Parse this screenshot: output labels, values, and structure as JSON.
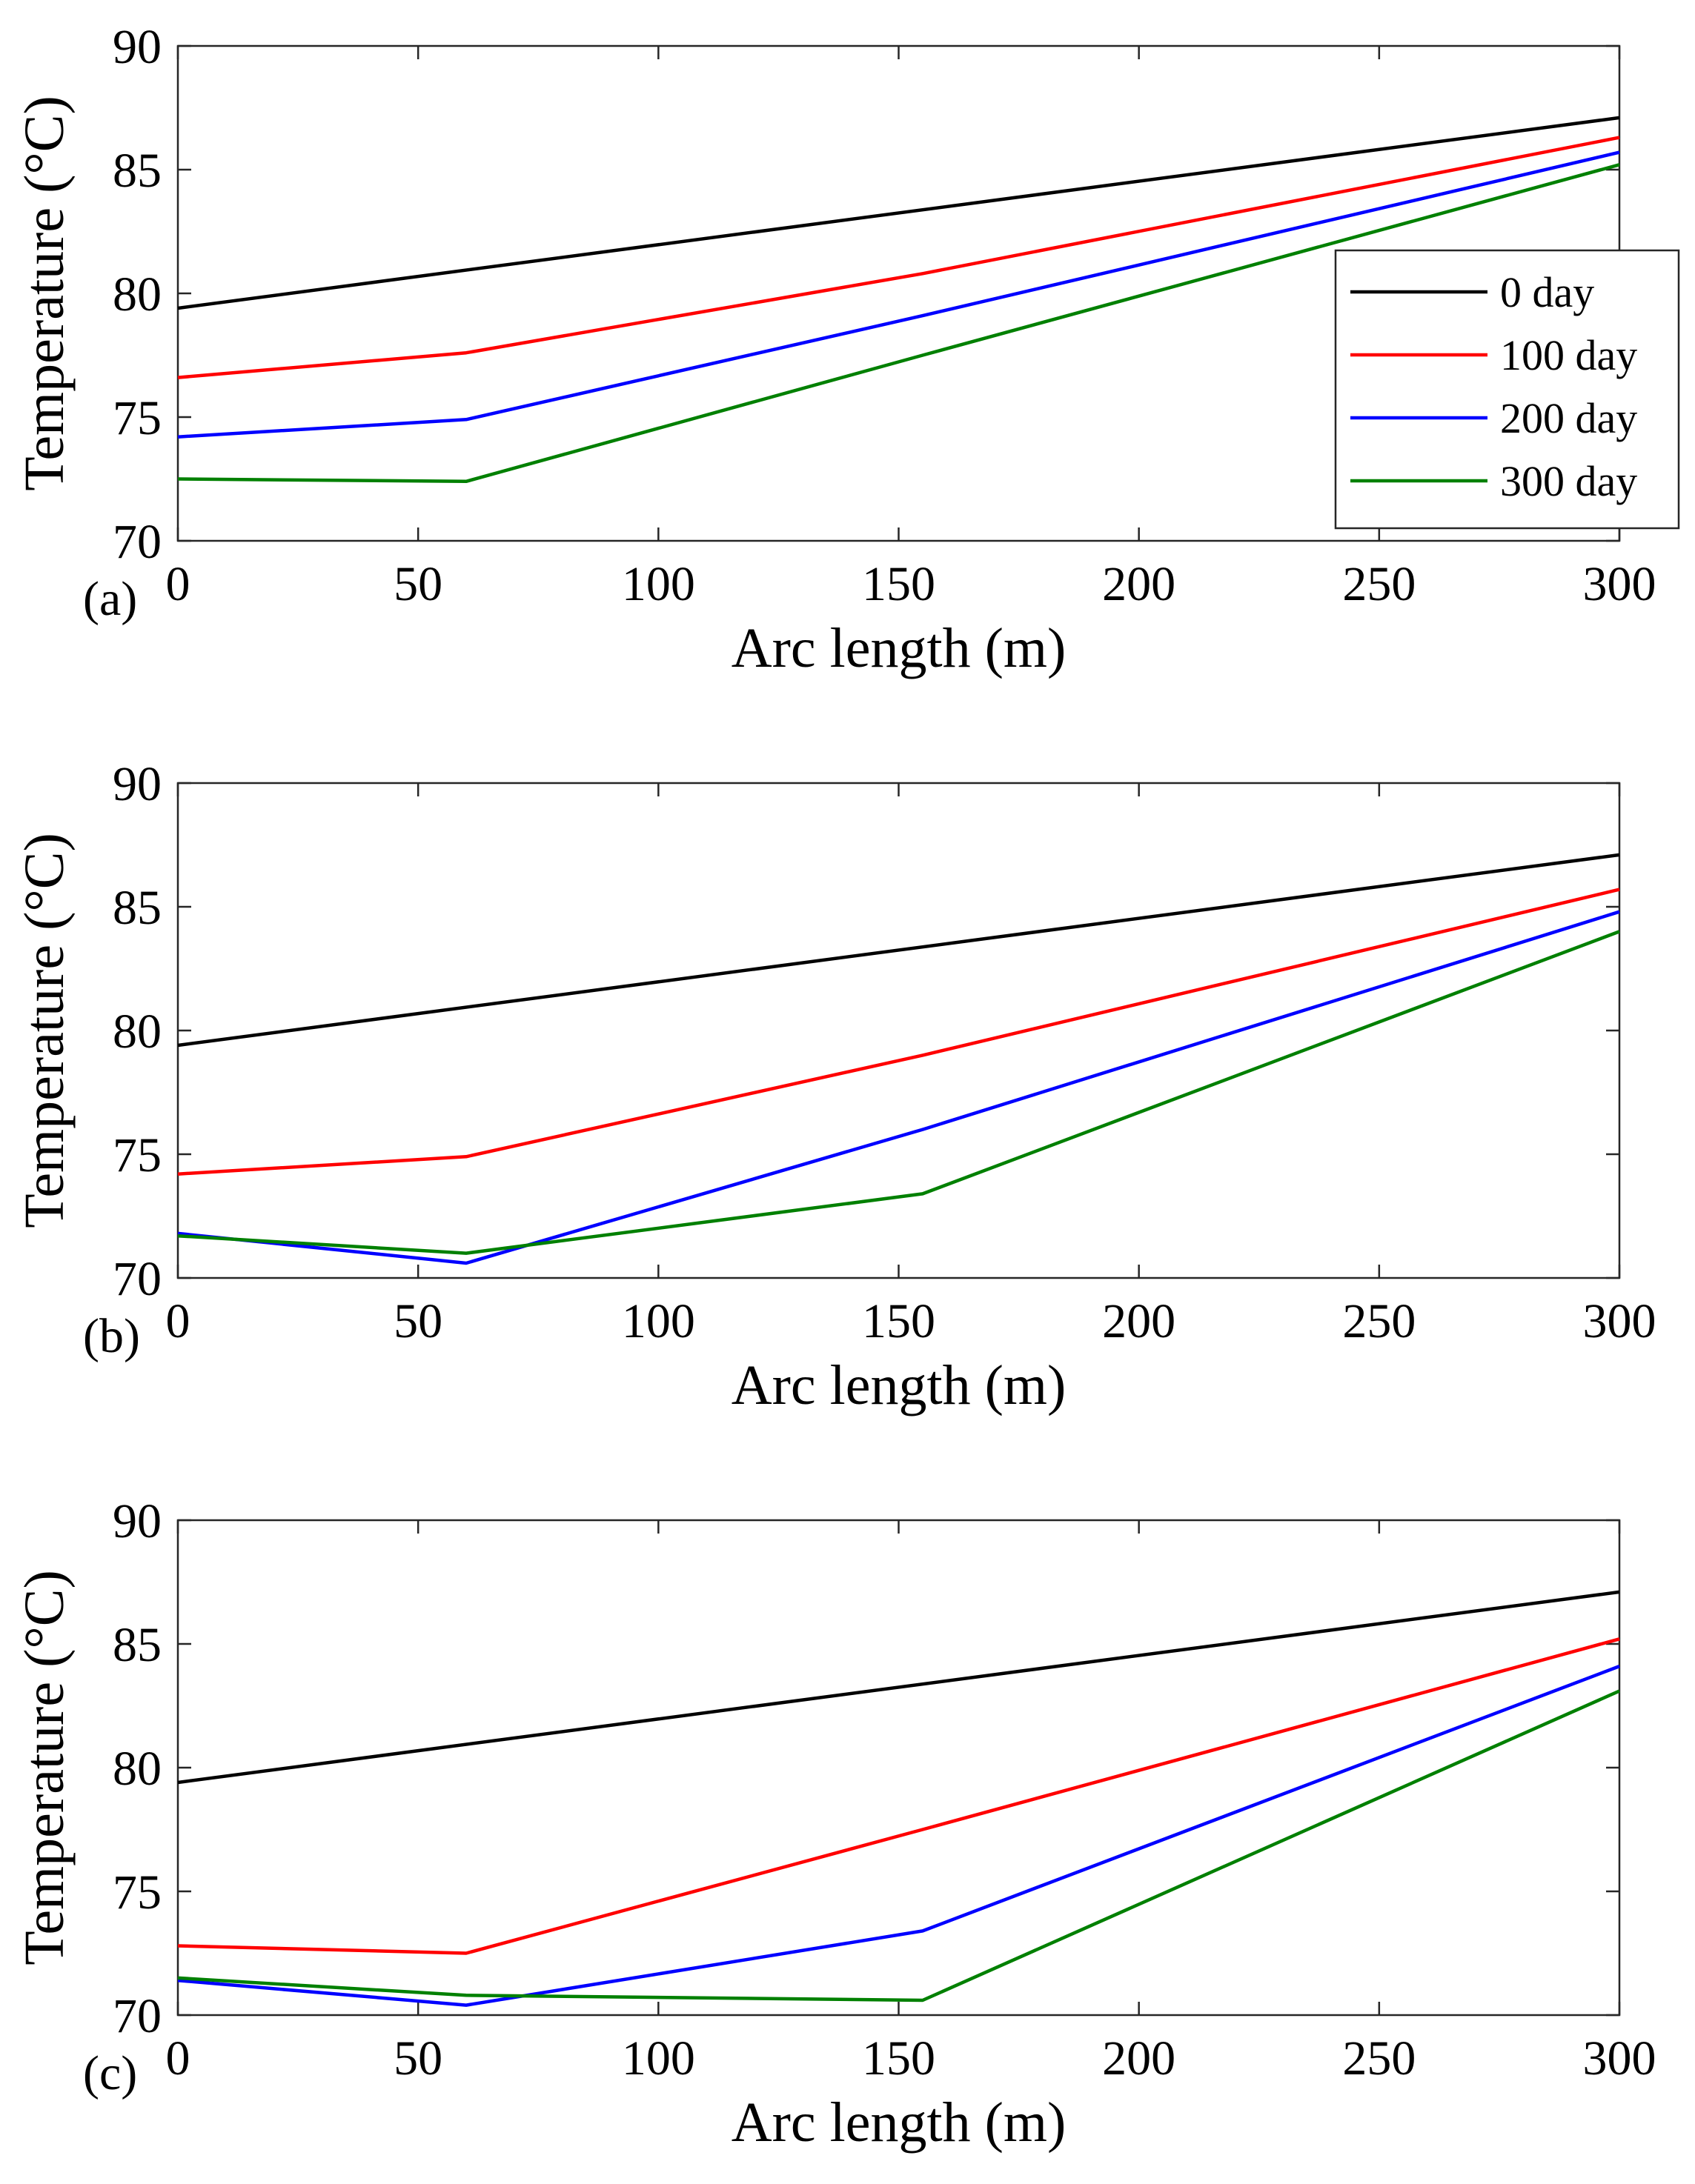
{
  "chart_data": [
    {
      "type": "line",
      "panel_label": "(a)",
      "xlabel": "Arc length (m)",
      "ylabel": "Temperature (°C)",
      "xlim": [
        0,
        300
      ],
      "ylim": [
        70,
        90
      ],
      "xticks": [
        0,
        50,
        100,
        150,
        200,
        250,
        300
      ],
      "yticks": [
        70,
        75,
        80,
        85,
        90
      ],
      "grid": false,
      "legend": "right",
      "series": [
        {
          "name": "0 day",
          "color": "#000000",
          "x": [
            0,
            300
          ],
          "y": [
            79.4,
            87.1
          ]
        },
        {
          "name": "100 day",
          "color": "#ff0000",
          "x": [
            0,
            60,
            155,
            300
          ],
          "y": [
            76.6,
            77.6,
            80.8,
            86.3
          ]
        },
        {
          "name": "200 day",
          "color": "#0000ff",
          "x": [
            0,
            60,
            155,
            300
          ],
          "y": [
            74.2,
            74.9,
            79.1,
            85.7
          ]
        },
        {
          "name": "300 day",
          "color": "#008000",
          "x": [
            0,
            60,
            155,
            300
          ],
          "y": [
            72.5,
            72.4,
            77.5,
            85.2
          ]
        }
      ]
    },
    {
      "type": "line",
      "panel_label": "(b)",
      "xlabel": "Arc length (m)",
      "ylabel": "Temperature (°C)",
      "xlim": [
        0,
        300
      ],
      "ylim": [
        70,
        90
      ],
      "xticks": [
        0,
        50,
        100,
        150,
        200,
        250,
        300
      ],
      "yticks": [
        70,
        75,
        80,
        85,
        90
      ],
      "grid": false,
      "series": [
        {
          "name": "",
          "color": "#000000",
          "x": [
            0,
            300
          ],
          "y": [
            79.4,
            87.1
          ]
        },
        {
          "name": "",
          "color": "#ff0000",
          "x": [
            0,
            60,
            155,
            300
          ],
          "y": [
            74.2,
            74.9,
            79.0,
            85.7
          ]
        },
        {
          "name": "",
          "color": "#0000ff",
          "x": [
            0,
            60,
            155,
            300
          ],
          "y": [
            71.8,
            70.6,
            76.0,
            84.8
          ]
        },
        {
          "name": "",
          "color": "#008000",
          "x": [
            0,
            60,
            155,
            300
          ],
          "y": [
            71.7,
            71.0,
            73.4,
            84.0
          ]
        }
      ]
    },
    {
      "type": "line",
      "panel_label": "(c)",
      "xlabel": "Arc length (m)",
      "ylabel": "Temperature (°C)",
      "xlim": [
        0,
        300
      ],
      "ylim": [
        70,
        90
      ],
      "xticks": [
        0,
        50,
        100,
        150,
        200,
        250,
        300
      ],
      "yticks": [
        70,
        75,
        80,
        85,
        90
      ],
      "grid": false,
      "series": [
        {
          "name": "",
          "color": "#000000",
          "x": [
            0,
            300
          ],
          "y": [
            79.4,
            87.1
          ]
        },
        {
          "name": "",
          "color": "#ff0000",
          "x": [
            0,
            60,
            155,
            300
          ],
          "y": [
            72.8,
            72.5,
            77.5,
            85.2
          ]
        },
        {
          "name": "",
          "color": "#0000ff",
          "x": [
            0,
            60,
            155,
            300
          ],
          "y": [
            71.4,
            70.4,
            73.4,
            84.1
          ]
        },
        {
          "name": "",
          "color": "#008000",
          "x": [
            0,
            60,
            155,
            300
          ],
          "y": [
            71.5,
            70.8,
            70.6,
            83.1
          ]
        }
      ]
    }
  ]
}
